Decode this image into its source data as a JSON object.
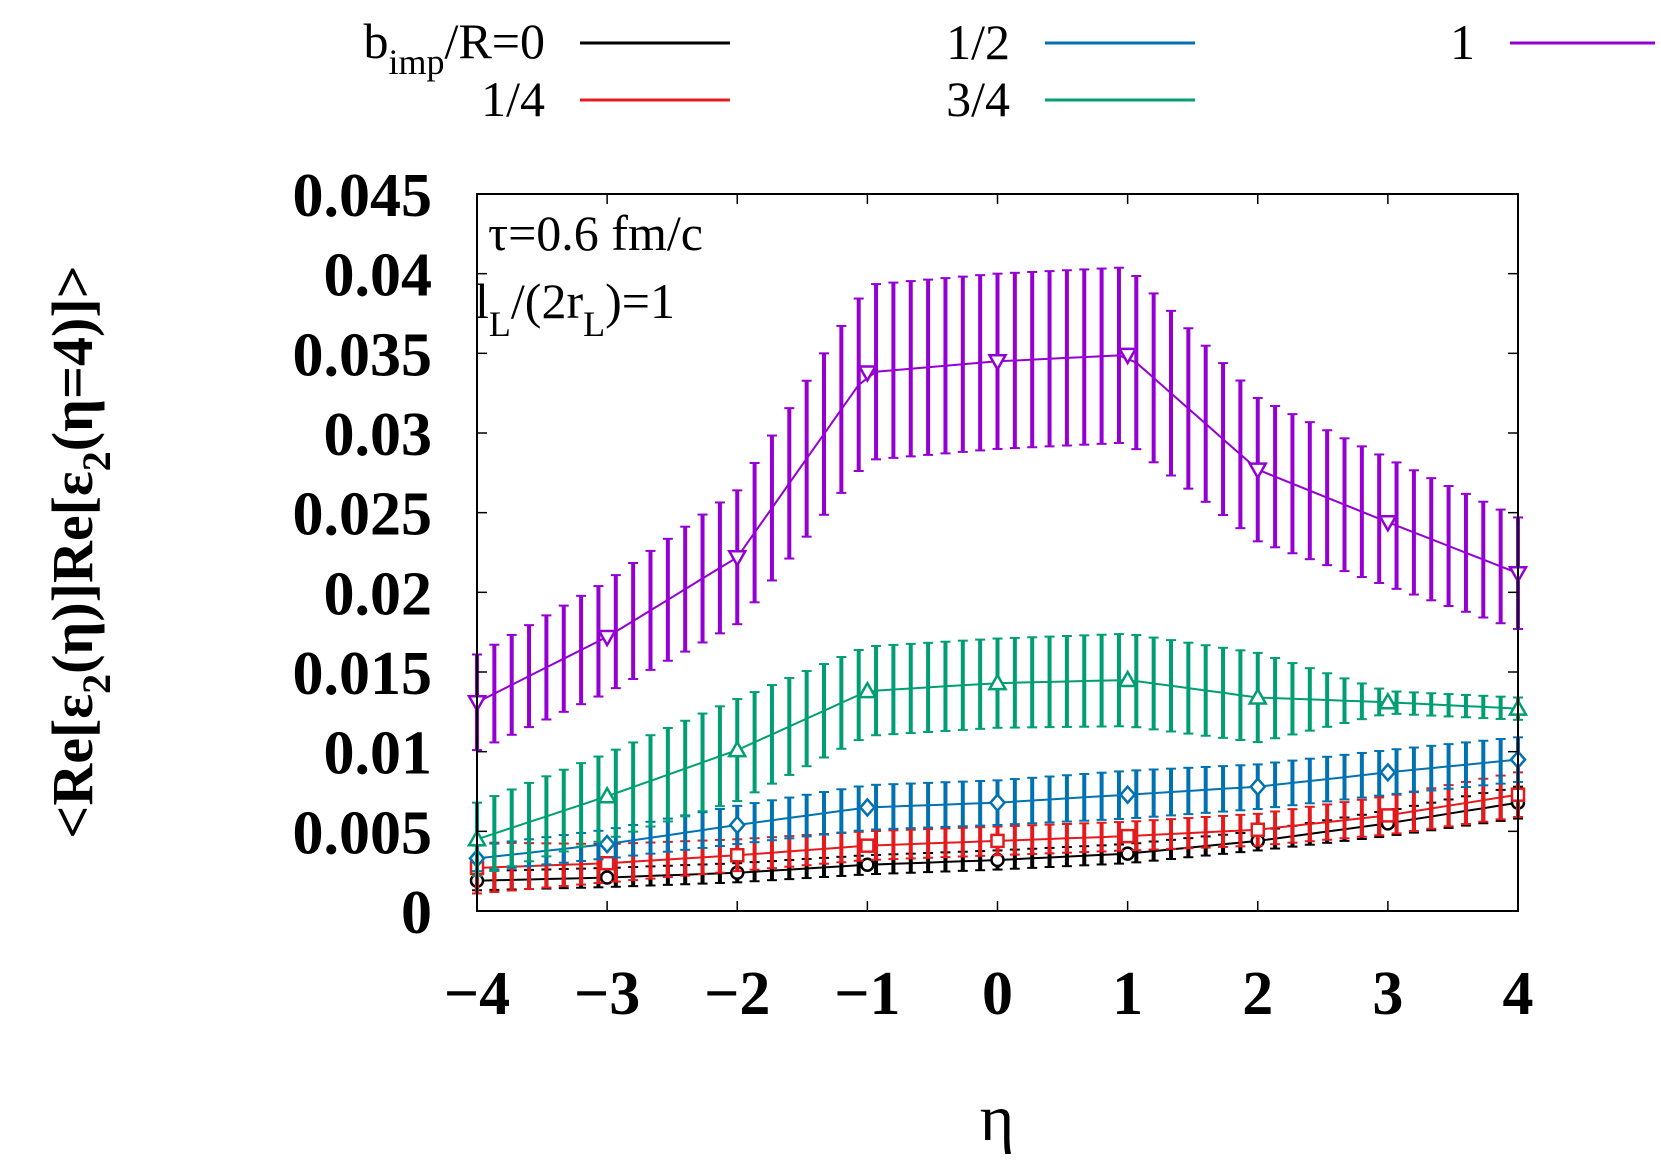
{
  "chart_data": {
    "type": "line",
    "title": "",
    "xlabel": "η",
    "ylabel": "<Re[ε2(η)]Re[ε2(η=4)]>",
    "ylabel_parts": {
      "prefix": "<Re[ε",
      "sub1": "2",
      "mid": "(η)]Re[ε",
      "sub2": "2",
      "suffix": "(η=4)]>"
    },
    "xlim": [
      -4,
      4
    ],
    "ylim": [
      0,
      0.045
    ],
    "x_ticks": [
      "−4",
      "−3",
      "−2",
      "−1",
      "0",
      "1",
      "2",
      "3",
      "4"
    ],
    "x_tick_values": [
      -4,
      -3,
      -2,
      -1,
      0,
      1,
      2,
      3,
      4
    ],
    "y_ticks": [
      "0",
      "0.005",
      "0.01",
      "0.015",
      "0.02",
      "0.025",
      "0.03",
      "0.035",
      "0.04",
      "0.045"
    ],
    "y_tick_values": [
      0,
      0.005,
      0.01,
      0.015,
      0.02,
      0.025,
      0.03,
      0.035,
      0.04,
      0.045
    ],
    "grid": false,
    "legend_placement": "top",
    "legend_title": {
      "base": "b",
      "sub": "imp",
      "rest": "/R=0"
    },
    "annotation": {
      "line1": "τ=0.6 fm/c",
      "line2": {
        "a": "l",
        "sub_a": "L",
        "b": "/(2r",
        "sub_b": "L",
        "c": ")=1"
      }
    },
    "series": [
      {
        "name": "b_imp/R=0",
        "legend_label": "",
        "color": "#000000",
        "marker": "circle",
        "x": [
          -4,
          -3,
          -2,
          -1,
          0,
          1,
          2,
          3,
          4
        ],
        "y": [
          0.0019,
          0.0021,
          0.0024,
          0.0029,
          0.0032,
          0.0036,
          0.0044,
          0.0055,
          0.0068
        ],
        "err": [
          0.0006,
          0.0006,
          0.0006,
          0.0006,
          0.0006,
          0.0006,
          0.0006,
          0.0008,
          0.001
        ]
      },
      {
        "name": "1/4",
        "legend_label": "1/4",
        "color": "#e41a1c",
        "marker": "square",
        "x": [
          -4,
          -3,
          -2,
          -1,
          0,
          1,
          2,
          3,
          4
        ],
        "y": [
          0.0027,
          0.003,
          0.0035,
          0.0041,
          0.0044,
          0.0047,
          0.0051,
          0.006,
          0.0073
        ],
        "err": [
          0.0016,
          0.0012,
          0.001,
          0.0009,
          0.0009,
          0.0009,
          0.001,
          0.0012,
          0.0014
        ]
      },
      {
        "name": "1/2",
        "legend_label": "1/2",
        "color": "#0072b2",
        "marker": "diamond",
        "x": [
          -4,
          -3,
          -2,
          -1,
          0,
          1,
          2,
          3,
          4
        ],
        "y": [
          0.0033,
          0.0042,
          0.0054,
          0.0065,
          0.0068,
          0.0073,
          0.0078,
          0.0087,
          0.0095
        ],
        "err": [
          0.0008,
          0.0009,
          0.0012,
          0.0014,
          0.0014,
          0.0015,
          0.0014,
          0.0014,
          0.0014
        ]
      },
      {
        "name": "3/4",
        "legend_label": "3/4",
        "color": "#009e73",
        "marker": "triangle-up",
        "x": [
          -4,
          -3,
          -2,
          -1,
          0,
          1,
          2,
          3,
          4
        ],
        "y": [
          0.0045,
          0.0072,
          0.0101,
          0.0138,
          0.0143,
          0.0145,
          0.0134,
          0.0131,
          0.0127
        ],
        "err": [
          0.0023,
          0.0027,
          0.0032,
          0.0028,
          0.0028,
          0.0029,
          0.0028,
          0.0007,
          0.0007
        ]
      },
      {
        "name": "1",
        "legend_label": "1",
        "color": "#9400d3",
        "marker": "triangle-down",
        "x": [
          -4,
          -3,
          -2,
          -1,
          0,
          1,
          2,
          3,
          4
        ],
        "y": [
          0.0131,
          0.0172,
          0.0222,
          0.0338,
          0.0345,
          0.0349,
          0.0277,
          0.0244,
          0.0212
        ],
        "err": [
          0.003,
          0.0035,
          0.0042,
          0.0055,
          0.0055,
          0.0055,
          0.0045,
          0.004,
          0.0035
        ]
      }
    ]
  }
}
